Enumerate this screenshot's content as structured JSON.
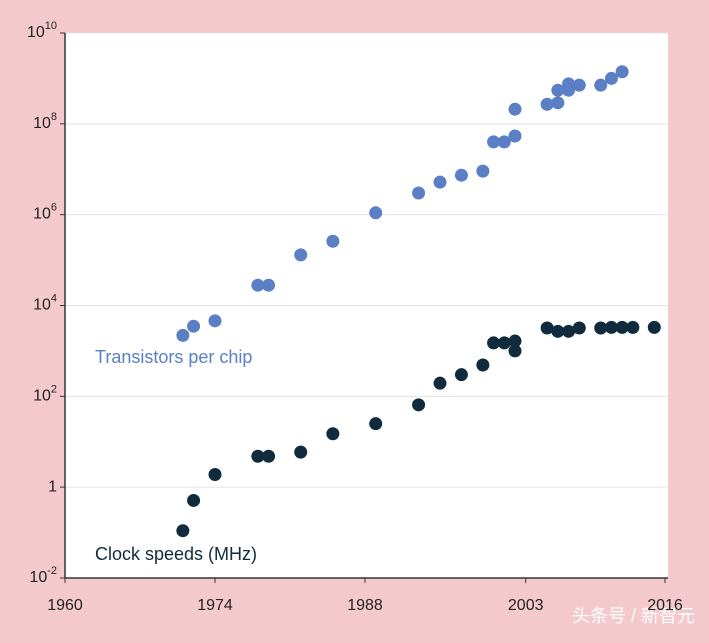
{
  "chart_data": {
    "type": "scatter",
    "xlim": [
      1960,
      2016
    ],
    "xticks": [
      1960,
      1974,
      1988,
      2003,
      2016
    ],
    "ylim": [
      0.01,
      10000000000
    ],
    "ylog": true,
    "yticks": [
      {
        "value": 10000000000,
        "label": "10",
        "sup": "10"
      },
      {
        "value": 100000000,
        "label": "10",
        "sup": "8"
      },
      {
        "value": 1000000,
        "label": "10",
        "sup": "6"
      },
      {
        "value": 10000,
        "label": "10",
        "sup": "4"
      },
      {
        "value": 100,
        "label": "10",
        "sup": "2"
      },
      1,
      {
        "value": 0.01,
        "label": "10",
        "sup": "-2"
      }
    ],
    "grid": true,
    "series": [
      {
        "name": "Transistors per chip",
        "color": "#5b7fc4",
        "x": [
          1971,
          1972,
          1974,
          1978,
          1979,
          1982,
          1985,
          1989,
          1993,
          1995,
          1997,
          1999,
          2000,
          2001,
          2002,
          2002,
          2005,
          2006,
          2006,
          2007,
          2007,
          2008,
          2010,
          2011,
          2012
        ],
        "values": [
          2200,
          3500,
          4600,
          28000,
          28000,
          130000,
          260000,
          1100000,
          3000000,
          5200000,
          7400000,
          9100000,
          40000000,
          40000000,
          54000000,
          210000000,
          270000000,
          290000000,
          550000000,
          760000000,
          550000000,
          710000000,
          710000000,
          1000000000,
          1400000000
        ]
      },
      {
        "name": "Clock speeds (MHz)",
        "color": "#0f2b3d",
        "x": [
          1971,
          1972,
          1974,
          1978,
          1979,
          1982,
          1985,
          1989,
          1993,
          1995,
          1997,
          1999,
          2000,
          2001,
          2002,
          2002,
          2005,
          2006,
          2007,
          2008,
          2010,
          2011,
          2012,
          2013,
          2015
        ],
        "values": [
          0.11,
          0.51,
          1.9,
          4.8,
          4.8,
          5.9,
          15,
          25,
          65,
          195,
          300,
          490,
          1500,
          1500,
          1650,
          1000,
          3200,
          2700,
          2700,
          3200,
          3200,
          3300,
          3300,
          3300,
          3300
        ]
      }
    ],
    "watermark": "头条号 / 新智元"
  }
}
